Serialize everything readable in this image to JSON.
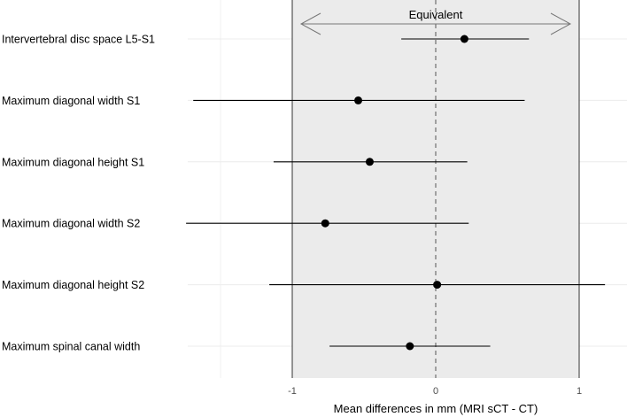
{
  "chart_data": {
    "type": "forest",
    "title": "",
    "xlabel": "Mean differences in mm (MRI sCT - CT)",
    "ylabel": "",
    "xlim": [
      -1.7,
      1.2
    ],
    "x_ticks": [
      -1,
      0,
      1
    ],
    "x_tick_labels": [
      "-1",
      "0",
      "1"
    ],
    "equivalence_region": {
      "lower": -1,
      "upper": 1,
      "label": "Equivalent"
    },
    "reference_line": 0,
    "series": [
      {
        "name": "Intervertebral disc space L5-S1",
        "mean": 0.2,
        "lower": -0.24,
        "upper": 0.65
      },
      {
        "name": "Maximum diagonal width S1",
        "mean": -0.54,
        "lower": -1.69,
        "upper": 0.62
      },
      {
        "name": "Maximum diagonal height S1",
        "mean": -0.46,
        "lower": -1.13,
        "upper": 0.22
      },
      {
        "name": "Maximum diagonal width S2",
        "mean": -0.77,
        "lower": -1.74,
        "upper": 0.23
      },
      {
        "name": "Maximum diagonal height S2",
        "mean": 0.01,
        "lower": -1.16,
        "upper": 1.18
      },
      {
        "name": "Maximum spinal canal width",
        "mean": -0.18,
        "lower": -0.74,
        "upper": 0.38
      }
    ],
    "grid": true
  }
}
